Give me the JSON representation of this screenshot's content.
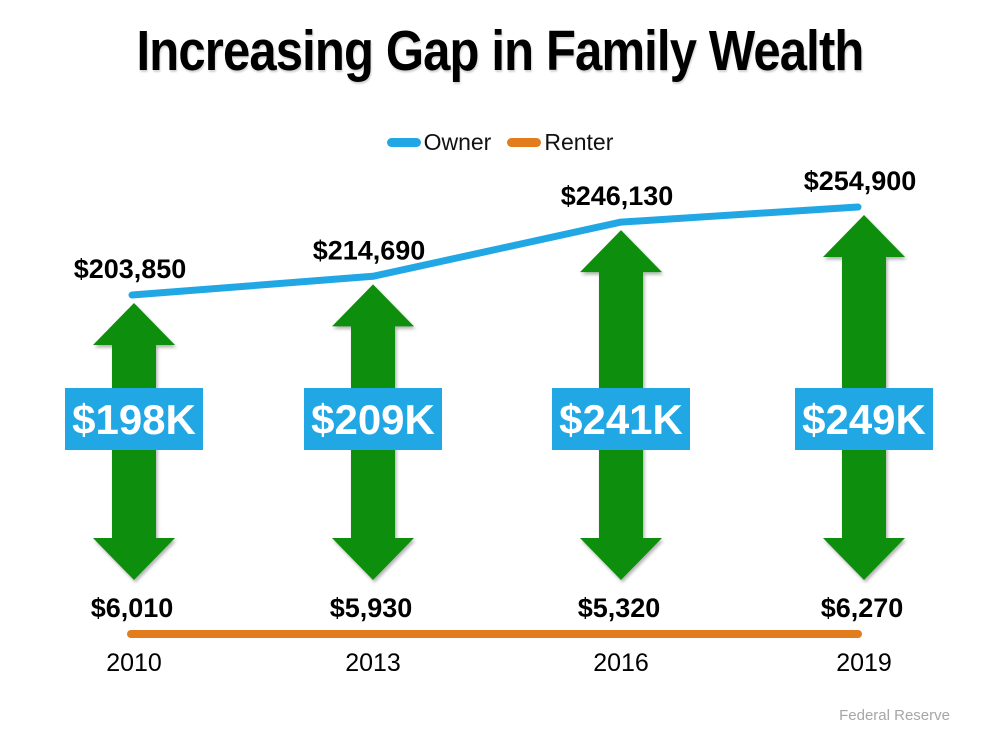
{
  "source": "Federal Reserve",
  "chart_data": {
    "type": "line",
    "title": "Increasing Gap in Family Wealth",
    "categories": [
      "2010",
      "2013",
      "2016",
      "2019"
    ],
    "series": [
      {
        "name": "Owner",
        "color": "#22A7E5",
        "values": [
          203850,
          214690,
          246130,
          254900
        ],
        "point_labels": [
          "$203,850",
          "$214,690",
          "$246,130",
          "$254,900"
        ]
      },
      {
        "name": "Renter",
        "color": "#E27C1C",
        "values": [
          6010,
          5930,
          5320,
          6270
        ],
        "point_labels": [
          "$6,010",
          "$5,930",
          "$5,320",
          "$6,270"
        ]
      }
    ],
    "gap_annotations": {
      "labels": [
        "$198K",
        "$209K",
        "$241K",
        "$249K"
      ],
      "arrow_color": "#0D8E0D",
      "label_bg": "#22A7E5",
      "label_text_color": "#FFFFFF"
    },
    "legend_position": "top",
    "grid": false,
    "axes_visible": false
  }
}
